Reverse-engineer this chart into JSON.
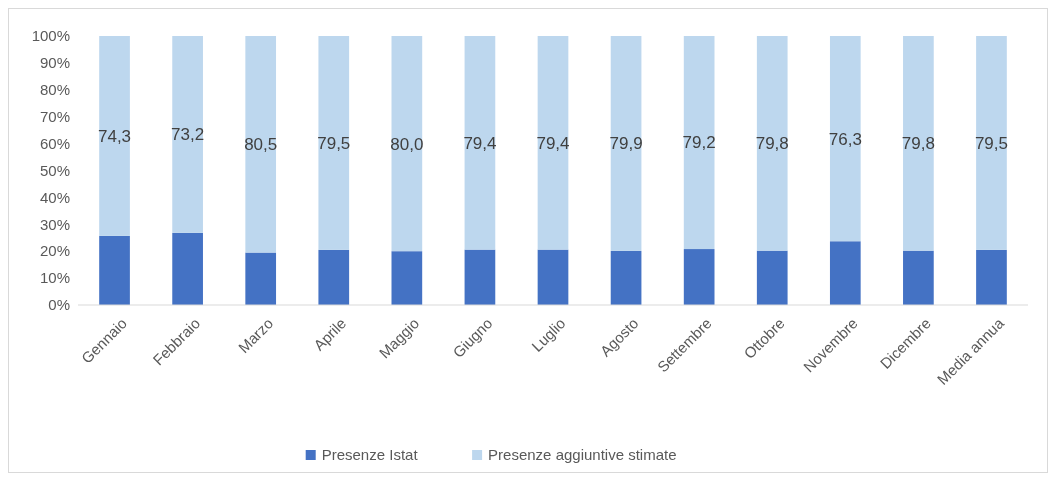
{
  "chart_data": {
    "type": "bar",
    "stacked": true,
    "categories": [
      "Gennaio",
      "Febbraio",
      "Marzo",
      "Aprile",
      "Maggio",
      "Giugno",
      "Luglio",
      "Agosto",
      "Settembre",
      "Ottobre",
      "Novembre",
      "Dicembre",
      "Media annua"
    ],
    "series": [
      {
        "name": "Presenze Istat",
        "color": "#4472c4",
        "values": [
          25.7,
          26.8,
          19.5,
          20.5,
          20.0,
          20.6,
          20.6,
          20.1,
          20.8,
          20.2,
          23.7,
          20.2,
          20.5
        ]
      },
      {
        "name": "Presenze aggiuntive stimate",
        "color": "#bdd7ee",
        "values": [
          74.3,
          73.2,
          80.5,
          79.5,
          80.0,
          79.4,
          79.4,
          79.9,
          79.2,
          79.8,
          76.3,
          79.8,
          79.5
        ],
        "value_labels": [
          "74,3",
          "73,2",
          "80,5",
          "79,5",
          "80,0",
          "79,4",
          "79,4",
          "79,9",
          "79,2",
          "79,8",
          "76,3",
          "79,8",
          "79,5"
        ]
      }
    ],
    "ylim": [
      0,
      100
    ],
    "yticks": [
      {
        "value": 0,
        "label": "0%"
      },
      {
        "value": 10,
        "label": "10%"
      },
      {
        "value": 20,
        "label": "20%"
      },
      {
        "value": 30,
        "label": "30%"
      },
      {
        "value": 40,
        "label": "40%"
      },
      {
        "value": 50,
        "label": "50%"
      },
      {
        "value": 60,
        "label": "60%"
      },
      {
        "value": 70,
        "label": "70%"
      },
      {
        "value": 80,
        "label": "80%"
      },
      {
        "value": 90,
        "label": "90%"
      },
      {
        "value": 100,
        "label": "100%"
      }
    ],
    "legend": "bottom"
  }
}
